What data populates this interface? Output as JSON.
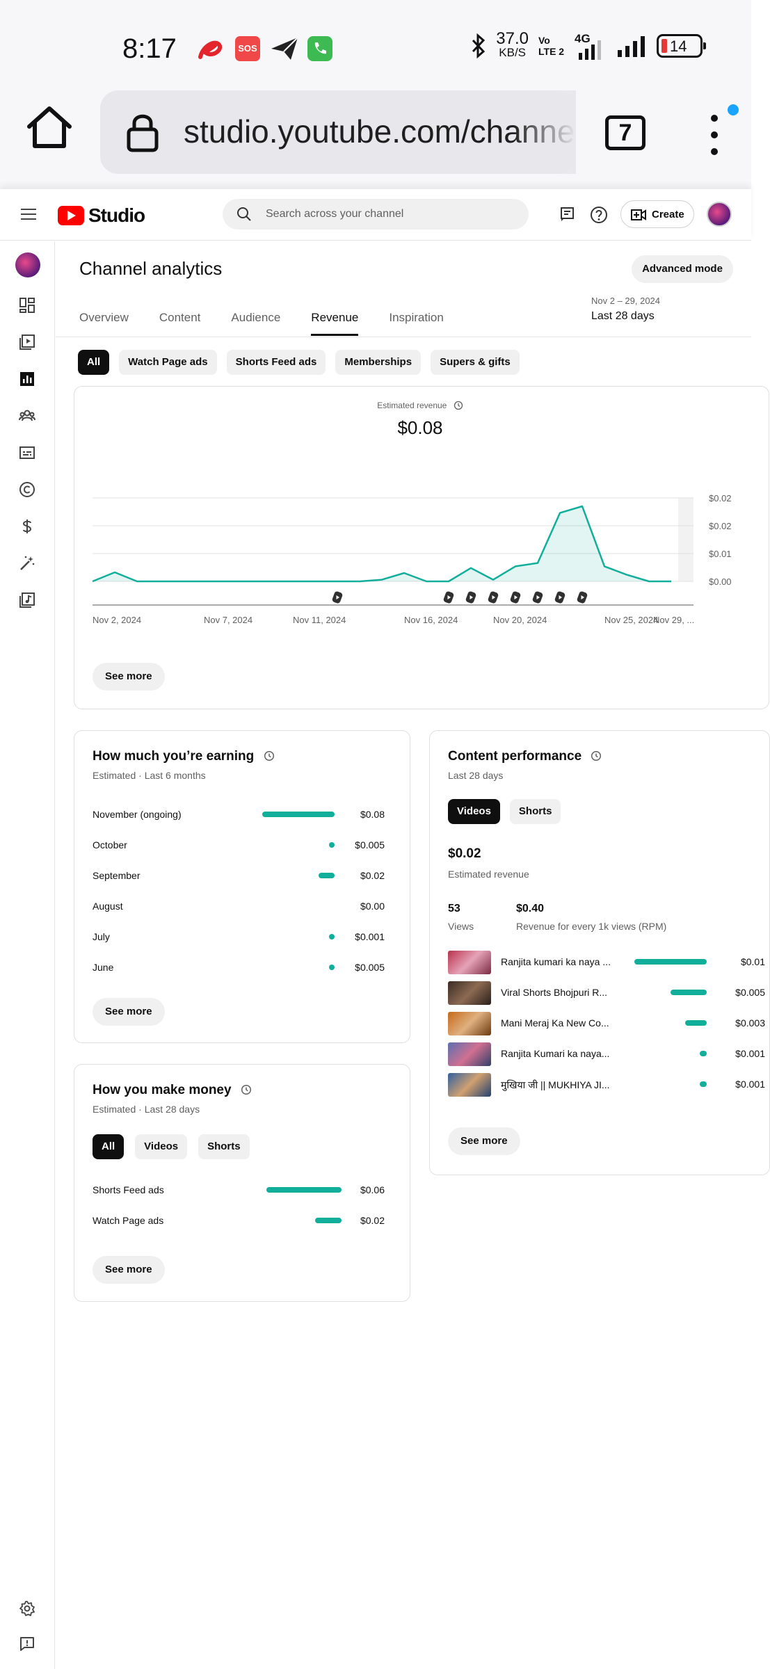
{
  "status_bar": {
    "time": "8:17",
    "sos_label": "SOS",
    "net_speed_value": "37.0",
    "net_speed_unit": "KB/S",
    "volte_label": "Vo LTE 2",
    "network_type": "4G",
    "battery": "14",
    "icons": [
      "airtel-icon",
      "sos-icon",
      "telegram-icon",
      "phone-icon",
      "bluetooth-icon",
      "signal-icon",
      "battery-icon"
    ]
  },
  "browser": {
    "url": "studio.youtube.com/channe",
    "tab_count": "7"
  },
  "header": {
    "brand": "Studio",
    "search_placeholder": "Search across your channel",
    "create_label": "Create"
  },
  "page": {
    "title": "Channel analytics",
    "advanced_mode": "Advanced mode",
    "tabs": [
      {
        "label": "Overview",
        "active": false
      },
      {
        "label": "Content",
        "active": false
      },
      {
        "label": "Audience",
        "active": false
      },
      {
        "label": "Revenue",
        "active": true
      },
      {
        "label": "Inspiration",
        "active": false
      }
    ],
    "date_range": "Nov 2 – 29, 2024",
    "date_label": "Last 28 days",
    "chips": [
      {
        "label": "All",
        "active": true
      },
      {
        "label": "Watch Page ads",
        "active": false
      },
      {
        "label": "Shorts Feed ads",
        "active": false
      },
      {
        "label": "Memberships",
        "active": false
      },
      {
        "label": "Supers & gifts",
        "active": false
      }
    ]
  },
  "revenue_chart": {
    "label": "Estimated revenue",
    "value": "$0.08",
    "see_more": "See more"
  },
  "chart_data": {
    "type": "area",
    "title": "Estimated revenue",
    "x": [
      "Nov 2",
      "Nov 3",
      "Nov 4",
      "Nov 5",
      "Nov 6",
      "Nov 7",
      "Nov 8",
      "Nov 9",
      "Nov 10",
      "Nov 11",
      "Nov 12",
      "Nov 13",
      "Nov 14",
      "Nov 15",
      "Nov 16",
      "Nov 17",
      "Nov 18",
      "Nov 19",
      "Nov 20",
      "Nov 21",
      "Nov 22",
      "Nov 23",
      "Nov 24",
      "Nov 25",
      "Nov 26",
      "Nov 27",
      "Nov 28"
    ],
    "values": [
      0.0,
      0.0027,
      0.0,
      0.0,
      0.0,
      0.0,
      0.0,
      0.0,
      0.0,
      0.0,
      0.0,
      0.0,
      0.0,
      0.0005,
      0.0025,
      0.0,
      0.0,
      0.004,
      0.0005,
      0.0045,
      0.0055,
      0.0205,
      0.0225,
      0.0045,
      0.002,
      0.0,
      0.0
    ],
    "x_tick_labels": [
      "Nov 2, 2024",
      "Nov 7, 2024",
      "Nov 11, 2024",
      "Nov 16, 2024",
      "Nov 20, 2024",
      "Nov 25, 2024",
      "Nov 29, ..."
    ],
    "y_tick_labels": [
      "$0.00",
      "$0.01",
      "$0.02",
      "$0.02"
    ],
    "ylim": [
      0,
      0.02
    ],
    "grid": true,
    "shorts_markers": [
      "Nov 13",
      "Nov 18",
      "Nov 19",
      "Nov 20",
      "Nov 21",
      "Nov 22",
      "Nov 23",
      "Nov 24"
    ],
    "color": "#12ae9c"
  },
  "earning_card": {
    "title": "How much you’re earning",
    "subtitle": "Estimated · Last 6 months",
    "rows": [
      {
        "month": "November (ongoing)",
        "value": "$0.08",
        "share": 1.0
      },
      {
        "month": "October",
        "value": "$0.005",
        "share": 0.06
      },
      {
        "month": "September",
        "value": "$0.02",
        "share": 0.22
      },
      {
        "month": "August",
        "value": "$0.00",
        "share": 0
      },
      {
        "month": "July",
        "value": "$0.001",
        "share": 0.012
      },
      {
        "month": "June",
        "value": "$0.005",
        "share": 0.06
      }
    ],
    "see_more": "See more"
  },
  "money_card": {
    "title": "How you make money",
    "subtitle": "Estimated · Last 28 days",
    "chips": [
      {
        "label": "All",
        "active": true
      },
      {
        "label": "Videos",
        "active": false
      },
      {
        "label": "Shorts",
        "active": false
      }
    ],
    "rows": [
      {
        "label": "Shorts Feed ads",
        "value": "$0.06",
        "share": 1.0
      },
      {
        "label": "Watch Page ads",
        "value": "$0.02",
        "share": 0.35
      }
    ],
    "see_more": "See more"
  },
  "content_card": {
    "title": "Content performance",
    "subtitle": "Last 28 days",
    "chips": [
      {
        "label": "Videos",
        "active": true
      },
      {
        "label": "Shorts",
        "active": false
      }
    ],
    "revenue_value": "$0.02",
    "revenue_label": "Estimated revenue",
    "views_value": "53",
    "views_label": "Views",
    "rpm_value": "$0.40",
    "rpm_label": "Revenue for every 1k views (RPM)",
    "videos": [
      {
        "title": "Ranjita kumari ka naya ...",
        "value": "$0.01",
        "share": 1.0
      },
      {
        "title": "Viral Shorts Bhojpuri R...",
        "value": "$0.005",
        "share": 0.5
      },
      {
        "title": "Mani Meraj Ka New Co...",
        "value": "$0.003",
        "share": 0.3
      },
      {
        "title": "Ranjita Kumari ka naya...",
        "value": "$0.001",
        "share": 0.1
      },
      {
        "title": "मुखिया जी || MUKHIYA JI...",
        "value": "$0.001",
        "share": 0.1
      }
    ],
    "see_more": "See more"
  }
}
